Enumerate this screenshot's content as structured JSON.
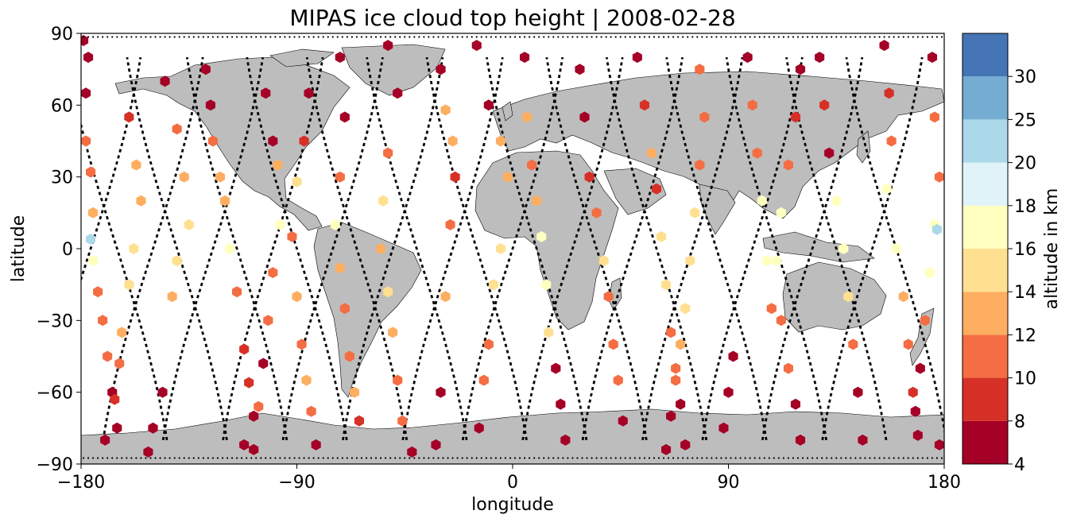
{
  "title": "MIPAS ice cloud top height | 2008-02-28",
  "map": {
    "xlabel": "longitude",
    "ylabel": "latitude",
    "xlim": [
      -180,
      180
    ],
    "ylim": [
      -90,
      90
    ],
    "xticks": [
      -180,
      -90,
      0,
      90,
      180
    ],
    "yticks": [
      -90,
      -60,
      -30,
      0,
      30,
      60,
      90
    ],
    "xtick_labels": [
      "−180",
      "−90",
      "0",
      "90",
      "180"
    ],
    "ytick_labels": [
      "−90",
      "−60",
      "−30",
      "0",
      "30",
      "60",
      "90"
    ],
    "land_color": "#bdbdbd",
    "track_color": "#000000",
    "marker": "hexagon"
  },
  "colorbar": {
    "label": "altitude in km",
    "boundaries": [
      4,
      8,
      10,
      12,
      14,
      16,
      18,
      20,
      25,
      30
    ],
    "tick_labels": [
      "4",
      "8",
      "10",
      "12",
      "14",
      "16",
      "18",
      "20",
      "25",
      "30"
    ],
    "colors": [
      "#a50026",
      "#d73027",
      "#f46d43",
      "#fdae61",
      "#fee090",
      "#ffffbf",
      "#e0f3f8",
      "#abd9e9",
      "#74add1",
      "#4575b4"
    ]
  },
  "chart_data": {
    "type": "scatter",
    "title": "MIPAS ice cloud top height | 2008-02-28",
    "xlabel": "longitude",
    "ylabel": "latitude",
    "xlim": [
      -180,
      180
    ],
    "ylim": [
      -90,
      90
    ],
    "color_variable": "altitude in km",
    "orbit_tracks": [
      {
        "x0": -176,
        "dir": 1
      },
      {
        "x0": -150,
        "dir": 1
      },
      {
        "x0": -125,
        "dir": 1
      },
      {
        "x0": -100,
        "dir": 1
      },
      {
        "x0": -75,
        "dir": 1
      },
      {
        "x0": -50,
        "dir": 1
      },
      {
        "x0": -25,
        "dir": 1
      },
      {
        "x0": 0,
        "dir": 1
      },
      {
        "x0": 25,
        "dir": 1
      },
      {
        "x0": 50,
        "dir": 1
      },
      {
        "x0": 75,
        "dir": 1
      },
      {
        "x0": 100,
        "dir": 1
      },
      {
        "x0": 125,
        "dir": 1
      },
      {
        "x0": 150,
        "dir": 1
      },
      {
        "x0": -165,
        "dir": -1
      },
      {
        "x0": -140,
        "dir": -1
      },
      {
        "x0": -115,
        "dir": -1
      },
      {
        "x0": -90,
        "dir": -1
      },
      {
        "x0": -65,
        "dir": -1
      },
      {
        "x0": -40,
        "dir": -1
      },
      {
        "x0": -15,
        "dir": -1
      },
      {
        "x0": 10,
        "dir": -1
      },
      {
        "x0": 35,
        "dir": -1
      },
      {
        "x0": 60,
        "dir": -1
      },
      {
        "x0": 85,
        "dir": -1
      },
      {
        "x0": 110,
        "dir": -1
      },
      {
        "x0": 135,
        "dir": -1
      },
      {
        "x0": 160,
        "dir": -1
      }
    ],
    "points": [
      [
        -177,
        80,
        5
      ],
      [
        -178,
        65,
        5
      ],
      [
        -178,
        45,
        11
      ],
      [
        -176,
        32,
        11
      ],
      [
        -175,
        15,
        13
      ],
      [
        -176,
        4,
        20
      ],
      [
        -175,
        -5,
        17
      ],
      [
        -173,
        -18,
        10
      ],
      [
        -171,
        -30,
        11
      ],
      [
        -169,
        -45,
        10
      ],
      [
        -167,
        -60,
        6
      ],
      [
        -165,
        -75,
        5
      ],
      [
        -179,
        87,
        5
      ],
      [
        -160,
        55,
        9
      ],
      [
        -157,
        35,
        12
      ],
      [
        -155,
        20,
        13
      ],
      [
        -158,
        0,
        15
      ],
      [
        -160,
        -15,
        14
      ],
      [
        -163,
        -35,
        13
      ],
      [
        -164,
        -48,
        11
      ],
      [
        -166,
        -63,
        9
      ],
      [
        -170,
        -80,
        5
      ],
      [
        -145,
        70,
        5
      ],
      [
        -140,
        50,
        10
      ],
      [
        -137,
        30,
        12
      ],
      [
        -135,
        10,
        14
      ],
      [
        -140,
        -5,
        14
      ],
      [
        -142,
        -20,
        13
      ],
      [
        -146,
        -60,
        5
      ],
      [
        -150,
        -75,
        5
      ],
      [
        -152,
        -85,
        5
      ],
      [
        -128,
        75,
        5
      ],
      [
        -126,
        60,
        6
      ],
      [
        -125,
        45,
        11
      ],
      [
        -122,
        30,
        12
      ],
      [
        -120,
        20,
        13
      ],
      [
        -118,
        0,
        16
      ],
      [
        -115,
        -18,
        11
      ],
      [
        -112,
        -42,
        9
      ],
      [
        -110,
        -56,
        9
      ],
      [
        -108,
        -70,
        5
      ],
      [
        -112,
        -82,
        5
      ],
      [
        -103,
        65,
        5
      ],
      [
        -100,
        45,
        7
      ],
      [
        -98,
        35,
        12
      ],
      [
        -97,
        10,
        16
      ],
      [
        -100,
        -10,
        11
      ],
      [
        -102,
        -30,
        10
      ],
      [
        -104,
        -48,
        5
      ],
      [
        -106,
        -66,
        10
      ],
      [
        -108,
        -84,
        5
      ],
      [
        -85,
        65,
        5
      ],
      [
        -87,
        45,
        9
      ],
      [
        -90,
        28,
        14
      ],
      [
        -92,
        5,
        11
      ],
      [
        -90,
        -20,
        12
      ],
      [
        -88,
        -40,
        10
      ],
      [
        -86,
        -55,
        12
      ],
      [
        -84,
        -68,
        11
      ],
      [
        -82,
        -82,
        5
      ],
      [
        -72,
        80,
        5
      ],
      [
        -70,
        55,
        5
      ],
      [
        -72,
        30,
        10
      ],
      [
        -74,
        10,
        17
      ],
      [
        -72,
        -8,
        12
      ],
      [
        -70,
        -25,
        10
      ],
      [
        -68,
        -45,
        11
      ],
      [
        -66,
        -60,
        12
      ],
      [
        -64,
        -72,
        9
      ],
      [
        -52,
        85,
        5
      ],
      [
        -48,
        65,
        5
      ],
      [
        -52,
        40,
        11
      ],
      [
        -54,
        20,
        14
      ],
      [
        -55,
        0,
        13
      ],
      [
        -52,
        -18,
        14
      ],
      [
        -50,
        -35,
        12
      ],
      [
        -48,
        -55,
        11
      ],
      [
        -46,
        -72,
        10
      ],
      [
        -42,
        -85,
        5
      ],
      [
        -30,
        75,
        5
      ],
      [
        -28,
        58,
        13
      ],
      [
        -25,
        45,
        13
      ],
      [
        -24,
        30,
        9
      ],
      [
        -26,
        10,
        11
      ],
      [
        -28,
        -20,
        12
      ],
      [
        -30,
        -60,
        5
      ],
      [
        -32,
        -82,
        5
      ],
      [
        -15,
        85,
        5
      ],
      [
        -10,
        60,
        6
      ],
      [
        -5,
        45,
        13
      ],
      [
        -2,
        30,
        13
      ],
      [
        -5,
        0,
        15
      ],
      [
        -8,
        -15,
        15
      ],
      [
        -10,
        -40,
        10
      ],
      [
        -12,
        -55,
        10
      ],
      [
        -14,
        -75,
        5
      ],
      [
        5,
        80,
        5
      ],
      [
        6,
        55,
        13
      ],
      [
        8,
        35,
        11
      ],
      [
        10,
        20,
        13
      ],
      [
        12,
        5,
        17
      ],
      [
        14,
        -15,
        17
      ],
      [
        15,
        -35,
        14
      ],
      [
        18,
        -50,
        5
      ],
      [
        20,
        -65,
        5
      ],
      [
        22,
        -80,
        5
      ],
      [
        28,
        75,
        5
      ],
      [
        30,
        55,
        5
      ],
      [
        32,
        30,
        9
      ],
      [
        35,
        15,
        10
      ],
      [
        38,
        -5,
        14
      ],
      [
        40,
        -20,
        10
      ],
      [
        42,
        -40,
        10
      ],
      [
        44,
        -55,
        10
      ],
      [
        46,
        -72,
        5
      ],
      [
        52,
        80,
        5
      ],
      [
        55,
        60,
        9
      ],
      [
        58,
        40,
        13
      ],
      [
        60,
        25,
        9
      ],
      [
        62,
        5,
        15
      ],
      [
        64,
        -15,
        14
      ],
      [
        66,
        -35,
        11
      ],
      [
        68,
        -50,
        10
      ],
      [
        70,
        -65,
        5
      ],
      [
        72,
        -82,
        5
      ],
      [
        78,
        75,
        10
      ],
      [
        80,
        55,
        11
      ],
      [
        78,
        35,
        11
      ],
      [
        76,
        15,
        15
      ],
      [
        74,
        -5,
        15
      ],
      [
        72,
        -25,
        14
      ],
      [
        70,
        -40,
        13
      ],
      [
        68,
        -55,
        11
      ],
      [
        66,
        -70,
        5
      ],
      [
        64,
        -84,
        5
      ],
      [
        98,
        80,
        5
      ],
      [
        100,
        60,
        11
      ],
      [
        102,
        40,
        11
      ],
      [
        104,
        20,
        16
      ],
      [
        106,
        -5,
        17
      ],
      [
        108,
        -25,
        10
      ],
      [
        92,
        -45,
        5
      ],
      [
        90,
        -60,
        5
      ],
      [
        88,
        -75,
        5
      ],
      [
        120,
        75,
        5
      ],
      [
        118,
        55,
        9
      ],
      [
        115,
        35,
        10
      ],
      [
        112,
        15,
        16
      ],
      [
        110,
        -5,
        17
      ],
      [
        112,
        -30,
        10
      ],
      [
        115,
        -50,
        10
      ],
      [
        118,
        -65,
        5
      ],
      [
        120,
        -80,
        5
      ],
      [
        128,
        80,
        5
      ],
      [
        130,
        60,
        9
      ],
      [
        132,
        40,
        6
      ],
      [
        135,
        20,
        16
      ],
      [
        138,
        0,
        17
      ],
      [
        140,
        -20,
        14
      ],
      [
        142,
        -40,
        10
      ],
      [
        144,
        -60,
        5
      ],
      [
        146,
        -80,
        5
      ],
      [
        155,
        85,
        5
      ],
      [
        157,
        65,
        9
      ],
      [
        158,
        45,
        11
      ],
      [
        156,
        25,
        16
      ],
      [
        160,
        0,
        16
      ],
      [
        163,
        -20,
        13
      ],
      [
        165,
        -40,
        10
      ],
      [
        167,
        -60,
        9
      ],
      [
        169,
        -78,
        5
      ],
      [
        175,
        80,
        5
      ],
      [
        176,
        55,
        10
      ],
      [
        178,
        30,
        10
      ],
      [
        176,
        10,
        16
      ],
      [
        177,
        8,
        20
      ],
      [
        174,
        -10,
        17
      ],
      [
        172,
        -30,
        10
      ],
      [
        170,
        -50,
        6
      ],
      [
        168,
        -68,
        5
      ],
      [
        178,
        -82,
        5
      ]
    ]
  }
}
